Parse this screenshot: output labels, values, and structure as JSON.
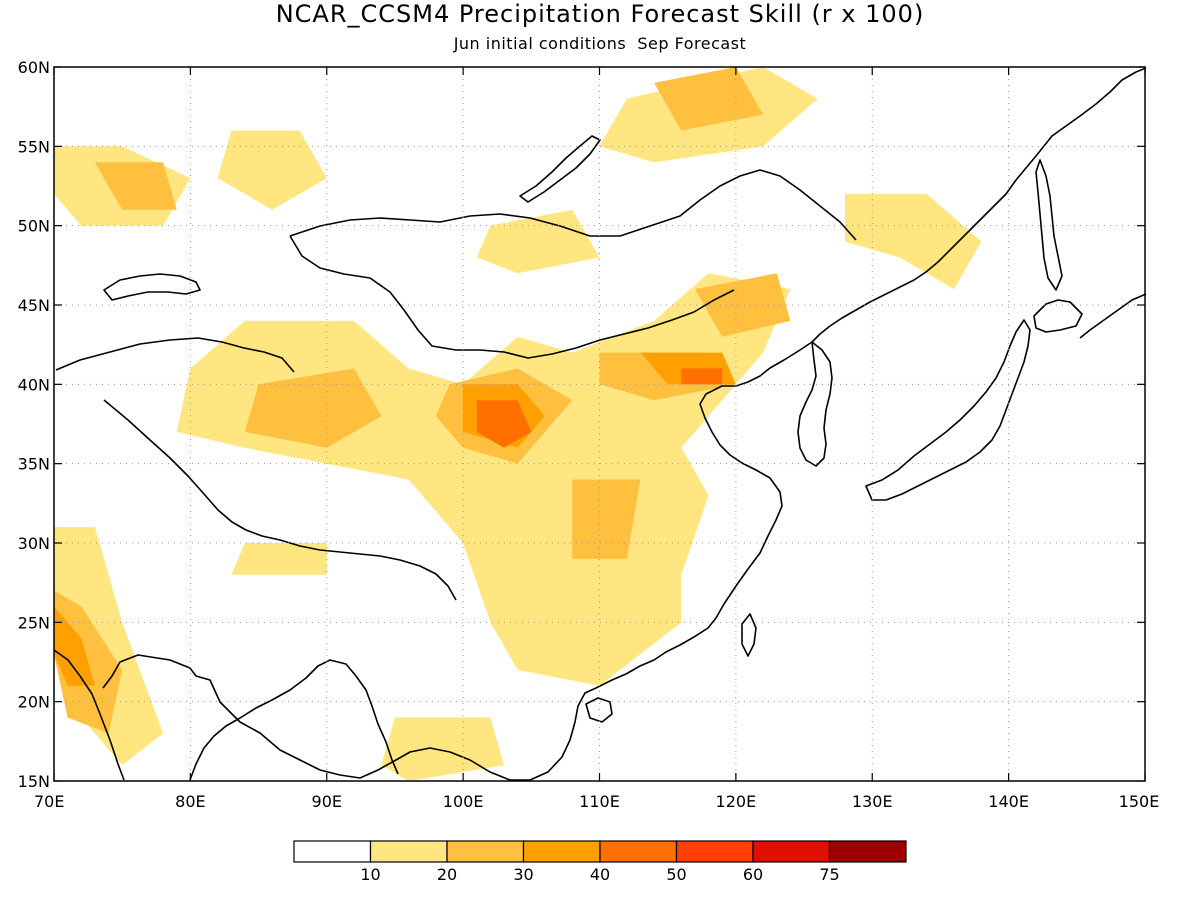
{
  "title": "NCAR_CCSM4 Precipitation Forecast Skill (r x 100)",
  "subtitle": "Jun initial conditions  Sep Forecast",
  "map": {
    "lon_range": [
      70,
      150
    ],
    "lat_range": [
      15,
      60
    ],
    "x_ticks": [
      "70E",
      "80E",
      "90E",
      "100E",
      "110E",
      "120E",
      "130E",
      "140E",
      "150E"
    ],
    "y_ticks": [
      "60N",
      "55N",
      "50N",
      "45N",
      "40N",
      "35N",
      "30N",
      "25N",
      "20N",
      "15N"
    ],
    "grid": true,
    "projection": "lat-lon"
  },
  "legend": {
    "colors": [
      "#ffffff",
      "#ffe680",
      "#ffc040",
      "#ffa000",
      "#ff7000",
      "#ff4000",
      "#e01000",
      "#a00000"
    ],
    "labels": [
      "10",
      "20",
      "30",
      "40",
      "50",
      "60",
      "75"
    ]
  },
  "skill_regions": [
    {
      "level": 1,
      "lon_lat": [
        [
          84,
          44
        ],
        [
          92,
          44
        ],
        [
          96,
          41
        ],
        [
          100,
          40
        ],
        [
          104,
          43
        ],
        [
          108,
          42
        ],
        [
          114,
          44
        ],
        [
          118,
          47
        ],
        [
          124,
          46
        ],
        [
          122,
          42
        ],
        [
          116,
          36
        ],
        [
          118,
          33
        ],
        [
          116,
          28
        ],
        [
          116,
          25
        ],
        [
          110,
          21
        ],
        [
          104,
          22
        ],
        [
          102,
          25
        ],
        [
          100,
          30
        ],
        [
          96,
          34
        ],
        [
          90,
          35
        ],
        [
          84,
          36
        ],
        [
          79,
          37
        ],
        [
          80,
          41
        ]
      ]
    },
    {
      "level": 1,
      "lon_lat": [
        [
          70,
          55
        ],
        [
          75,
          55
        ],
        [
          80,
          53
        ],
        [
          78,
          50
        ],
        [
          72,
          50
        ],
        [
          70,
          52
        ]
      ]
    },
    {
      "level": 1,
      "lon_lat": [
        [
          83,
          56
        ],
        [
          88,
          56
        ],
        [
          90,
          53
        ],
        [
          86,
          51
        ],
        [
          82,
          53
        ]
      ]
    },
    {
      "level": 1,
      "lon_lat": [
        [
          102,
          50
        ],
        [
          108,
          51
        ],
        [
          110,
          48
        ],
        [
          104,
          47
        ],
        [
          101,
          48
        ]
      ]
    },
    {
      "level": 1,
      "lon_lat": [
        [
          112,
          58
        ],
        [
          122,
          60
        ],
        [
          126,
          58
        ],
        [
          122,
          55
        ],
        [
          114,
          54
        ],
        [
          110,
          55
        ]
      ]
    },
    {
      "level": 1,
      "lon_lat": [
        [
          128,
          52
        ],
        [
          134,
          52
        ],
        [
          138,
          49
        ],
        [
          136,
          46
        ],
        [
          132,
          48
        ],
        [
          128,
          49
        ]
      ]
    },
    {
      "level": 1,
      "lon_lat": [
        [
          70,
          31
        ],
        [
          73,
          31
        ],
        [
          75,
          25
        ],
        [
          78,
          18
        ],
        [
          75,
          16
        ],
        [
          72,
          19
        ],
        [
          70,
          24
        ]
      ]
    },
    {
      "level": 1,
      "lon_lat": [
        [
          84,
          30
        ],
        [
          90,
          30
        ],
        [
          90,
          28
        ],
        [
          86,
          28
        ],
        [
          83,
          28
        ]
      ]
    },
    {
      "level": 1,
      "lon_lat": [
        [
          95,
          19
        ],
        [
          102,
          19
        ],
        [
          103,
          16
        ],
        [
          96,
          15
        ],
        [
          94,
          16
        ]
      ]
    },
    {
      "level": 2,
      "lon_lat": [
        [
          85,
          40
        ],
        [
          92,
          41
        ],
        [
          94,
          38
        ],
        [
          90,
          36
        ],
        [
          84,
          37
        ]
      ]
    },
    {
      "level": 2,
      "lon_lat": [
        [
          99,
          40
        ],
        [
          104,
          41
        ],
        [
          108,
          39
        ],
        [
          104,
          35
        ],
        [
          100,
          36
        ],
        [
          98,
          38
        ]
      ]
    },
    {
      "level": 2,
      "lon_lat": [
        [
          110,
          42
        ],
        [
          118,
          42
        ],
        [
          120,
          40
        ],
        [
          114,
          39
        ],
        [
          110,
          40
        ]
      ]
    },
    {
      "level": 2,
      "lon_lat": [
        [
          108,
          34
        ],
        [
          113,
          34
        ],
        [
          112,
          29
        ],
        [
          108,
          29
        ]
      ]
    },
    {
      "level": 2,
      "lon_lat": [
        [
          70,
          27
        ],
        [
          72,
          26
        ],
        [
          75,
          22
        ],
        [
          74,
          18
        ],
        [
          71,
          19
        ],
        [
          70,
          23
        ]
      ]
    },
    {
      "level": 2,
      "lon_lat": [
        [
          114,
          59
        ],
        [
          120,
          60
        ],
        [
          122,
          57
        ],
        [
          116,
          56
        ]
      ]
    },
    {
      "level": 2,
      "lon_lat": [
        [
          73,
          54
        ],
        [
          78,
          54
        ],
        [
          79,
          51
        ],
        [
          75,
          51
        ]
      ]
    },
    {
      "level": 2,
      "lon_lat": [
        [
          117,
          46
        ],
        [
          123,
          47
        ],
        [
          124,
          44
        ],
        [
          119,
          43
        ]
      ]
    },
    {
      "level": 3,
      "lon_lat": [
        [
          100,
          40
        ],
        [
          104,
          40
        ],
        [
          106,
          38
        ],
        [
          104,
          36
        ],
        [
          100,
          37
        ]
      ]
    },
    {
      "level": 3,
      "lon_lat": [
        [
          113,
          42
        ],
        [
          119,
          42
        ],
        [
          120,
          40
        ],
        [
          115,
          40
        ]
      ]
    },
    {
      "level": 3,
      "lon_lat": [
        [
          70,
          26
        ],
        [
          72,
          24
        ],
        [
          73,
          21
        ],
        [
          71,
          21
        ],
        [
          70,
          23
        ]
      ]
    },
    {
      "level": 4,
      "lon_lat": [
        [
          101,
          39
        ],
        [
          104,
          39
        ],
        [
          105,
          37
        ],
        [
          103,
          36
        ],
        [
          101,
          37
        ]
      ]
    },
    {
      "level": 4,
      "lon_lat": [
        [
          116,
          41
        ],
        [
          119,
          41
        ],
        [
          119,
          40
        ],
        [
          116,
          40
        ]
      ]
    }
  ]
}
